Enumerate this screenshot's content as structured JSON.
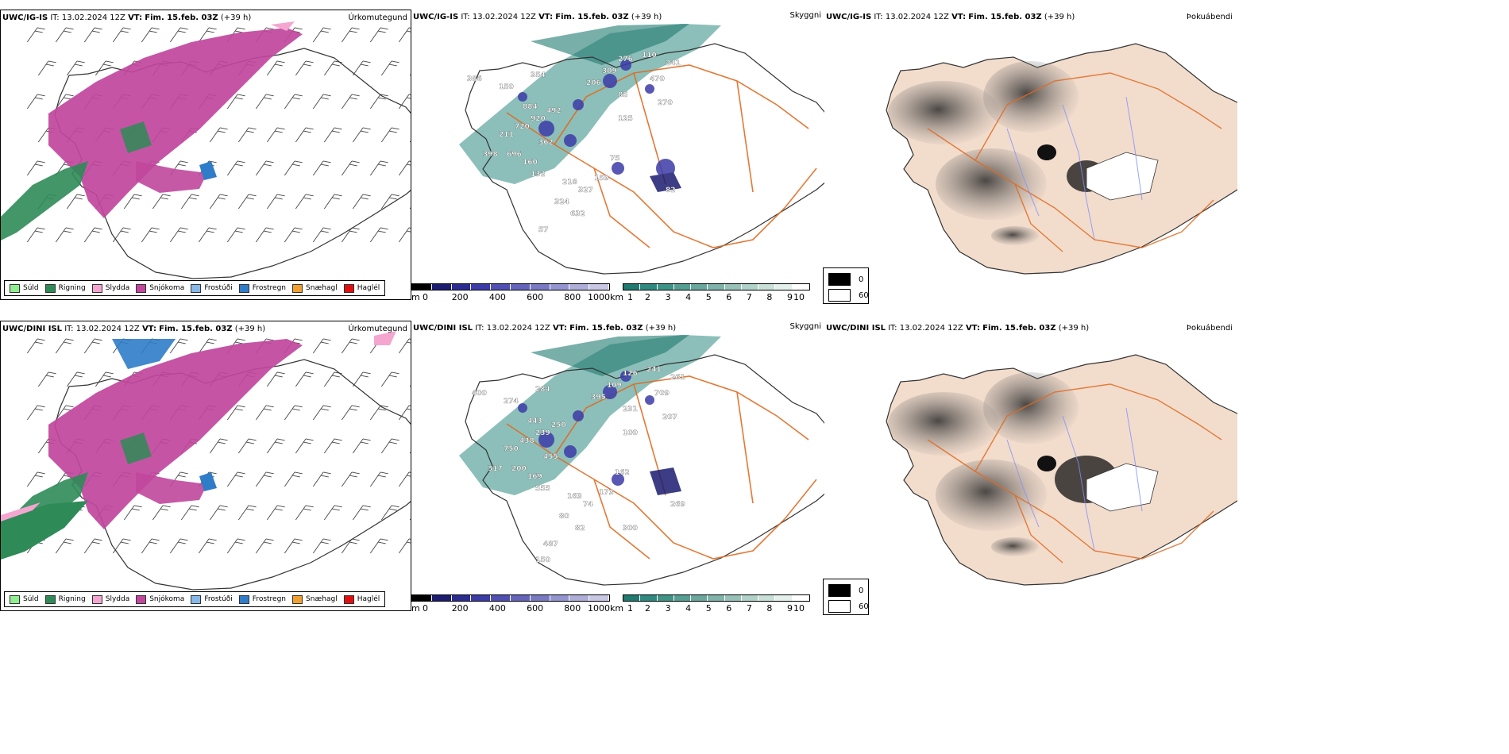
{
  "colors": {
    "sudd": "#90ee90",
    "rigning": "#2e8b57",
    "slydda": "#f4a6d0",
    "snjokoma": "#c0479c",
    "frostudi": "#87b8e8",
    "frostregn": "#2f7cc8",
    "snaehagl": "#f0a030",
    "haglel": "#e01010",
    "roads": "#e06a20",
    "rivers": "#8090ff",
    "land": "#f2dccc"
  },
  "precip_legend": [
    {
      "label": "Súld",
      "color": "#90ee90"
    },
    {
      "label": "Rigning",
      "color": "#2e8b57"
    },
    {
      "label": "Slydda",
      "color": "#f4a6d0"
    },
    {
      "label": "Snjókoma",
      "color": "#c0479c"
    },
    {
      "label": "Frostúði",
      "color": "#87b8e8"
    },
    {
      "label": "Frostregn",
      "color": "#2f7cc8"
    },
    {
      "label": "Snæhagl",
      "color": "#f0a030"
    },
    {
      "label": "Haglél",
      "color": "#e01010"
    }
  ],
  "ceiling_colorbar": {
    "unit": "m",
    "ticks": [
      "0",
      "200",
      "400",
      "600",
      "800",
      "1000"
    ],
    "colors": [
      "#000000",
      "#1c1c70",
      "#2c2c90",
      "#3c3ca8",
      "#5050b4",
      "#6464bc",
      "#7a7ac4",
      "#9494d0",
      "#aeaed8",
      "#c8c8e4"
    ]
  },
  "visibility_colorbar": {
    "unit": "km",
    "ticks": [
      "1",
      "2",
      "3",
      "4",
      "5",
      "6",
      "7",
      "8",
      "9",
      "10"
    ],
    "colors": [
      "#1f7a70",
      "#2f8a80",
      "#3f9488",
      "#559e94",
      "#6aa89e",
      "#80b4aa",
      "#98c2b8",
      "#b0d2c8",
      "#c8e0d8",
      "#e4f0ec",
      "#ffffff"
    ]
  },
  "cloud_legend": [
    {
      "label": "0",
      "color": "#000000"
    },
    {
      "label": "60",
      "color": "#ffffff"
    }
  ],
  "rows": [
    {
      "model": "UWC/IG-IS",
      "it_label": "IT:",
      "it": "13.02.2024 12Z",
      "vt_label": "VT:",
      "vt": "Fim. 15.feb. 03Z",
      "lead": "(+39 h)",
      "titles": {
        "precip": "Úrkomutegund",
        "visibility": "Skyggni",
        "cloud": "Þokuábendi"
      },
      "labels": [
        "386",
        "150",
        "354",
        "276",
        "110",
        "241",
        "309",
        "206",
        "470",
        "85",
        "270",
        "884",
        "492",
        "920",
        "720",
        "211",
        "362",
        "696",
        "125",
        "398",
        "160",
        "132",
        "75",
        "218",
        "159",
        "327",
        "324",
        "82",
        "632",
        "57"
      ]
    },
    {
      "model": "UWC/DINI ISL",
      "it_label": "IT:",
      "it": "13.02.2024 12Z",
      "vt_label": "VT:",
      "vt": "Fim. 15.feb. 03Z",
      "lead": "(+39 h)",
      "titles": {
        "precip": "Úrkomutegund",
        "visibility": "Skyggni",
        "cloud": "Þokuábendi"
      },
      "labels": [
        "400",
        "274",
        "284",
        "126",
        "241",
        "261",
        "109",
        "395",
        "709",
        "231",
        "207",
        "443",
        "250",
        "239",
        "438",
        "750",
        "455",
        "200",
        "100",
        "317",
        "169",
        "555",
        "162",
        "163",
        "173",
        "74",
        "80",
        "269",
        "82",
        "487",
        "300",
        "150"
      ]
    }
  ]
}
